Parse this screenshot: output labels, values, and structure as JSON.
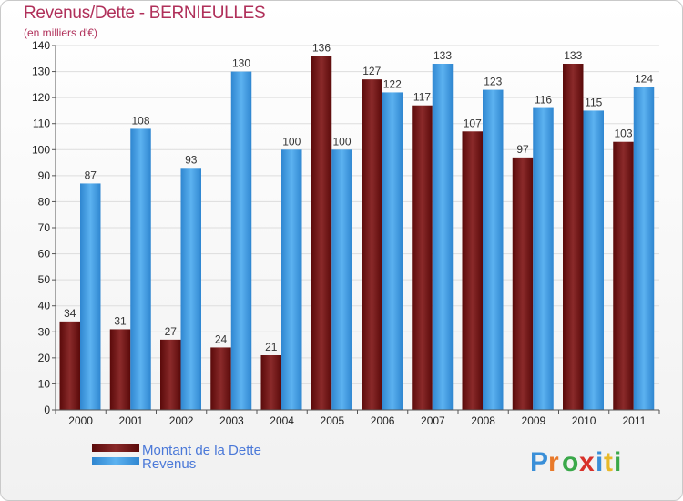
{
  "header": {
    "title": "Revenus/Dette - BERNIEULLES",
    "subtitle": "(en milliers d'€)"
  },
  "chart_data": {
    "type": "bar",
    "title": "Revenus/Dette - BERNIEULLES",
    "ylabel": "(en milliers d'€)",
    "xlabel": "",
    "categories": [
      "2000",
      "2001",
      "2002",
      "2003",
      "2004",
      "2005",
      "2006",
      "2007",
      "2008",
      "2009",
      "2010",
      "2011"
    ],
    "ylim": [
      0,
      140
    ],
    "yticks": [
      0,
      10,
      20,
      30,
      40,
      50,
      60,
      70,
      80,
      90,
      100,
      110,
      120,
      130,
      140
    ],
    "grid": true,
    "legend_position": "bottom-left",
    "series": [
      {
        "name": "Montant de la Dette",
        "color": "#7a1b1b",
        "values": [
          34,
          31,
          27,
          24,
          21,
          136,
          127,
          117,
          107,
          97,
          133,
          103
        ]
      },
      {
        "name": "Revenus",
        "color": "#4aa3e8",
        "values": [
          87,
          108,
          93,
          130,
          100,
          100,
          122,
          133,
          123,
          116,
          115,
          124
        ]
      }
    ]
  },
  "legend": {
    "debt_label": "Montant de la Dette",
    "revenue_label": "Revenus"
  },
  "logo": {
    "text": "Proxiti",
    "colors": [
      "#3a8fd8",
      "#e8792a",
      "#3aa84a",
      "#d8312a",
      "#3a8fd8",
      "#e8b92a",
      "#3aa84a"
    ]
  }
}
